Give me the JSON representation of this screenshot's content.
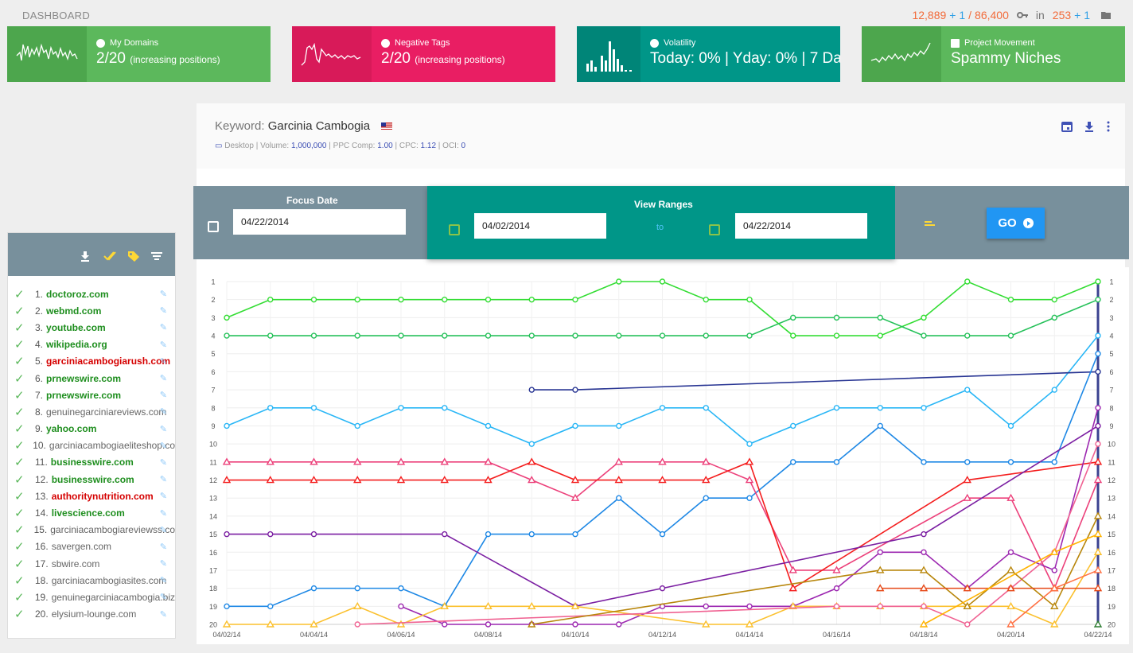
{
  "header": {
    "title": "DASHBOARD",
    "stats": {
      "a": "12,889",
      "a_delta": "+ 1",
      "sep": "/",
      "b": "86,400",
      "in_label": "in",
      "c": "253",
      "c_delta": "+ 1"
    }
  },
  "cards": [
    {
      "label": "My Domains",
      "value": "2/20",
      "note": "(increasing positions)"
    },
    {
      "label": "Negative Tags",
      "value": "2/20",
      "note": "(increasing positions)"
    },
    {
      "label": "Volatility",
      "value": "Today: 0% | Yday: 0% | 7 Da",
      "note": ""
    },
    {
      "label": "Project Movement",
      "value": "Spammy Niches",
      "note": ""
    }
  ],
  "keyword": {
    "label": "Keyword:",
    "name": "Garcinia Cambogia",
    "device": "Desktop",
    "volume_label": "Volume:",
    "volume": "1,000,000",
    "ppc_label": "PPC Comp:",
    "ppc": "1.00",
    "cpc_label": "CPC:",
    "cpc": "1.12",
    "oci_label": "OCI:",
    "oci": "0"
  },
  "filters": {
    "focus_label": "Focus Date",
    "focus_date": "04/22/2014",
    "ranges_label": "View Ranges",
    "range_from": "04/02/2014",
    "to_label": "to",
    "range_to": "04/22/2014",
    "go_label": "GO"
  },
  "domains": [
    {
      "n": "1.",
      "name": "doctoroz.com",
      "c": "g"
    },
    {
      "n": "2.",
      "name": "webmd.com",
      "c": "g"
    },
    {
      "n": "3.",
      "name": "youtube.com",
      "c": "g"
    },
    {
      "n": "4.",
      "name": "wikipedia.org",
      "c": "g"
    },
    {
      "n": "5.",
      "name": "garciniacambogiarush.com",
      "c": "r"
    },
    {
      "n": "6.",
      "name": "prnewswire.com",
      "c": "g"
    },
    {
      "n": "7.",
      "name": "prnewswire.com",
      "c": "g"
    },
    {
      "n": "8.",
      "name": "genuinegarciniareviews.com",
      "c": "n"
    },
    {
      "n": "9.",
      "name": "yahoo.com",
      "c": "g"
    },
    {
      "n": "10.",
      "name": "garciniacambogiaeliteshop.co",
      "c": "n"
    },
    {
      "n": "11.",
      "name": "businesswire.com",
      "c": "g"
    },
    {
      "n": "12.",
      "name": "businesswire.com",
      "c": "g"
    },
    {
      "n": "13.",
      "name": "authoritynutrition.com",
      "c": "r"
    },
    {
      "n": "14.",
      "name": "livescience.com",
      "c": "g"
    },
    {
      "n": "15.",
      "name": "garciniacambogiareviewss.co",
      "c": "n"
    },
    {
      "n": "16.",
      "name": "savergen.com",
      "c": "n"
    },
    {
      "n": "17.",
      "name": "sbwire.com",
      "c": "n"
    },
    {
      "n": "18.",
      "name": "garciniacambogiasites.com",
      "c": "n"
    },
    {
      "n": "19.",
      "name": "genuinegarciniacambogia.biz",
      "c": "n"
    },
    {
      "n": "20.",
      "name": "elysium-lounge.com",
      "c": "n"
    }
  ],
  "chart_data": {
    "type": "line",
    "x": [
      "04/02/14",
      "04/03/14",
      "04/04/14",
      "04/05/14",
      "04/06/14",
      "04/07/14",
      "04/08/14",
      "04/09/14",
      "04/10/14",
      "04/11/14",
      "04/12/14",
      "04/13/14",
      "04/14/14",
      "04/15/14",
      "04/16/14",
      "04/17/14",
      "04/18/14",
      "04/19/14",
      "04/20/14",
      "04/21/14",
      "04/22/14"
    ],
    "x_tick_labels": [
      "04/02/14",
      "04/04/14",
      "04/06/14",
      "04/08/14",
      "04/10/14",
      "04/12/14",
      "04/14/14",
      "04/16/14",
      "04/18/14",
      "04/20/14",
      "04/22/14"
    ],
    "y_ticks": [
      1,
      2,
      3,
      4,
      5,
      6,
      7,
      8,
      9,
      10,
      11,
      12,
      13,
      14,
      15,
      16,
      17,
      18,
      19,
      20
    ],
    "y_reversed": true,
    "ylim": [
      1,
      20
    ],
    "series": [
      {
        "color": "#33dd33",
        "marker": "circle",
        "values": [
          3,
          2,
          2,
          2,
          2,
          2,
          2,
          2,
          2,
          1,
          1,
          2,
          2,
          4,
          4,
          4,
          3,
          1,
          2,
          2,
          1
        ]
      },
      {
        "color": "#26c15a",
        "marker": "circle",
        "values": [
          4,
          4,
          4,
          4,
          4,
          4,
          4,
          4,
          4,
          4,
          4,
          4,
          4,
          3,
          3,
          3,
          4,
          4,
          4,
          3,
          2
        ]
      },
      {
        "color": "#29b6f6",
        "marker": "circle",
        "values": [
          9,
          8,
          8,
          9,
          8,
          8,
          9,
          10,
          9,
          9,
          8,
          8,
          10,
          9,
          8,
          8,
          8,
          7,
          9,
          7,
          4
        ]
      },
      {
        "color": "#283593",
        "marker": "circle",
        "values": [
          null,
          null,
          null,
          null,
          null,
          null,
          null,
          7,
          7,
          null,
          null,
          null,
          null,
          null,
          null,
          null,
          null,
          null,
          null,
          null,
          6
        ]
      },
      {
        "color": "#1e88e5",
        "marker": "circle",
        "values": [
          19,
          19,
          18,
          18,
          18,
          19,
          15,
          15,
          15,
          13,
          15,
          13,
          13,
          11,
          11,
          9,
          11,
          11,
          11,
          11,
          5
        ]
      },
      {
        "color": "#ec407a",
        "marker": "triangle",
        "values": [
          11,
          11,
          11,
          11,
          11,
          11,
          11,
          12,
          13,
          11,
          11,
          11,
          12,
          17,
          17,
          null,
          null,
          13,
          13,
          18,
          12
        ]
      },
      {
        "color": "#f41e1e",
        "marker": "triangle",
        "values": [
          12,
          12,
          12,
          12,
          12,
          12,
          12,
          11,
          12,
          12,
          12,
          12,
          11,
          18,
          null,
          null,
          null,
          12,
          null,
          null,
          11
        ]
      },
      {
        "color": "#7b1fa2",
        "marker": "circle",
        "values": [
          15,
          15,
          15,
          null,
          null,
          15,
          null,
          null,
          19,
          null,
          18,
          null,
          null,
          null,
          null,
          null,
          15,
          null,
          null,
          null,
          9
        ]
      },
      {
        "color": "#9c27b0",
        "marker": "circle",
        "values": [
          null,
          null,
          null,
          null,
          19,
          20,
          20,
          20,
          20,
          20,
          19,
          19,
          19,
          19,
          18,
          16,
          16,
          18,
          16,
          17,
          8
        ]
      },
      {
        "color": "#fbc02d",
        "marker": "triangle",
        "values": [
          20,
          20,
          20,
          19,
          20,
          19,
          19,
          19,
          19,
          null,
          null,
          20,
          20,
          19,
          19,
          19,
          19,
          19,
          19,
          20,
          16
        ]
      },
      {
        "color": "#f06292",
        "marker": "circle",
        "values": [
          null,
          null,
          null,
          20,
          null,
          null,
          null,
          null,
          null,
          null,
          null,
          null,
          null,
          null,
          19,
          19,
          19,
          20,
          18,
          16,
          10
        ]
      },
      {
        "color": "#b8860b",
        "marker": "triangle",
        "values": [
          null,
          null,
          null,
          null,
          null,
          null,
          null,
          20,
          null,
          null,
          null,
          null,
          null,
          null,
          null,
          17,
          17,
          19,
          17,
          19,
          14
        ]
      },
      {
        "color": "#e64a19",
        "marker": "triangle",
        "values": [
          null,
          null,
          null,
          null,
          null,
          null,
          null,
          null,
          null,
          null,
          null,
          null,
          null,
          null,
          null,
          18,
          18,
          18,
          18,
          18,
          18
        ]
      },
      {
        "color": "#ff7043",
        "marker": "triangle",
        "values": [
          null,
          null,
          null,
          null,
          null,
          null,
          null,
          null,
          null,
          null,
          null,
          null,
          null,
          null,
          null,
          null,
          null,
          null,
          20,
          18,
          17
        ]
      },
      {
        "color": "#ffb300",
        "marker": "triangle",
        "values": [
          null,
          null,
          null,
          null,
          null,
          null,
          null,
          null,
          null,
          null,
          null,
          null,
          null,
          null,
          null,
          null,
          20,
          null,
          null,
          16,
          15
        ]
      },
      {
        "color": "#2e7d32",
        "marker": "triangle",
        "values": [
          null,
          null,
          null,
          null,
          null,
          null,
          null,
          null,
          null,
          null,
          null,
          null,
          null,
          null,
          null,
          null,
          null,
          null,
          null,
          null,
          20
        ]
      }
    ]
  }
}
